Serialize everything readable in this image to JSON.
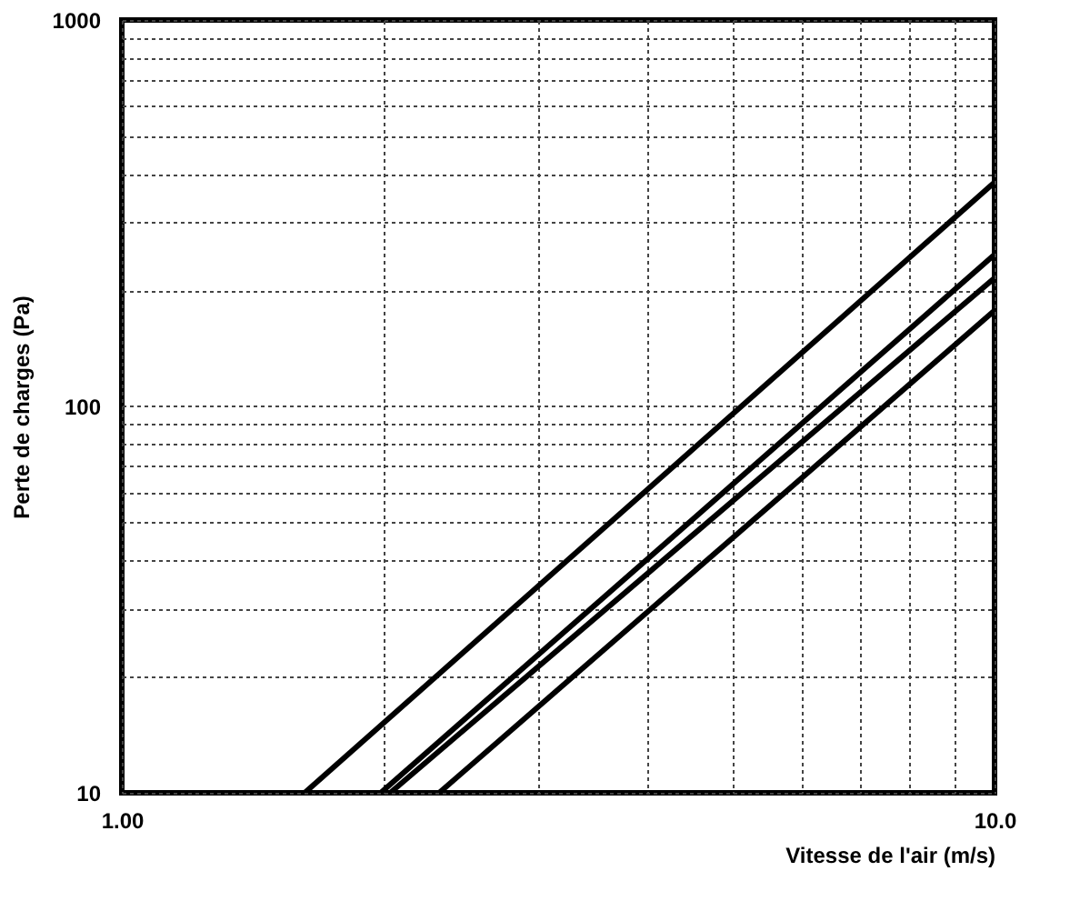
{
  "chart_data": {
    "type": "line",
    "xlabel": "Vitesse de l'air (m/s)",
    "ylabel": "Perte de charges (Pa)",
    "log": "xy",
    "grid": true,
    "legend": false,
    "marker": "none",
    "line_style": "solid",
    "xlim": [
      1,
      10
    ],
    "ylim": [
      10,
      1000
    ],
    "xticks": [
      {
        "value": 1,
        "label": "1.00"
      },
      {
        "value": 2,
        "label": null
      },
      {
        "value": 3,
        "label": null
      },
      {
        "value": 4,
        "label": null
      },
      {
        "value": 5,
        "label": null
      },
      {
        "value": 6,
        "label": null
      },
      {
        "value": 7,
        "label": null
      },
      {
        "value": 8,
        "label": null
      },
      {
        "value": 9,
        "label": null
      },
      {
        "value": 10,
        "label": "10.0"
      }
    ],
    "yticks": [
      10,
      {
        "value": 20,
        "label": null
      },
      {
        "value": 30,
        "label": null
      },
      {
        "value": 40,
        "label": null
      },
      {
        "value": 50,
        "label": null
      },
      {
        "value": 60,
        "label": null
      },
      {
        "value": 70,
        "label": null
      },
      {
        "value": 80,
        "label": null
      },
      {
        "value": 90,
        "label": null
      },
      100,
      {
        "value": 200,
        "label": null
      },
      {
        "value": 300,
        "label": null
      },
      {
        "value": 400,
        "label": null
      },
      {
        "value": 500,
        "label": null
      },
      {
        "value": 600,
        "label": null
      },
      {
        "value": 700,
        "label": null
      },
      {
        "value": 800,
        "label": null
      },
      {
        "value": 900,
        "label": null
      },
      1000
    ],
    "series": [
      {
        "color": "#000000",
        "x": [
          1.62,
          10
        ],
        "values": [
          10,
          380
        ]
      },
      {
        "color": "#000000",
        "x": [
          1.98,
          10
        ],
        "values": [
          10,
          247
        ]
      },
      {
        "color": "#000000",
        "x": [
          2.03,
          10
        ],
        "values": [
          10,
          215
        ]
      },
      {
        "color": "#000000",
        "x": [
          2.31,
          10
        ],
        "values": [
          10,
          177
        ]
      }
    ]
  }
}
